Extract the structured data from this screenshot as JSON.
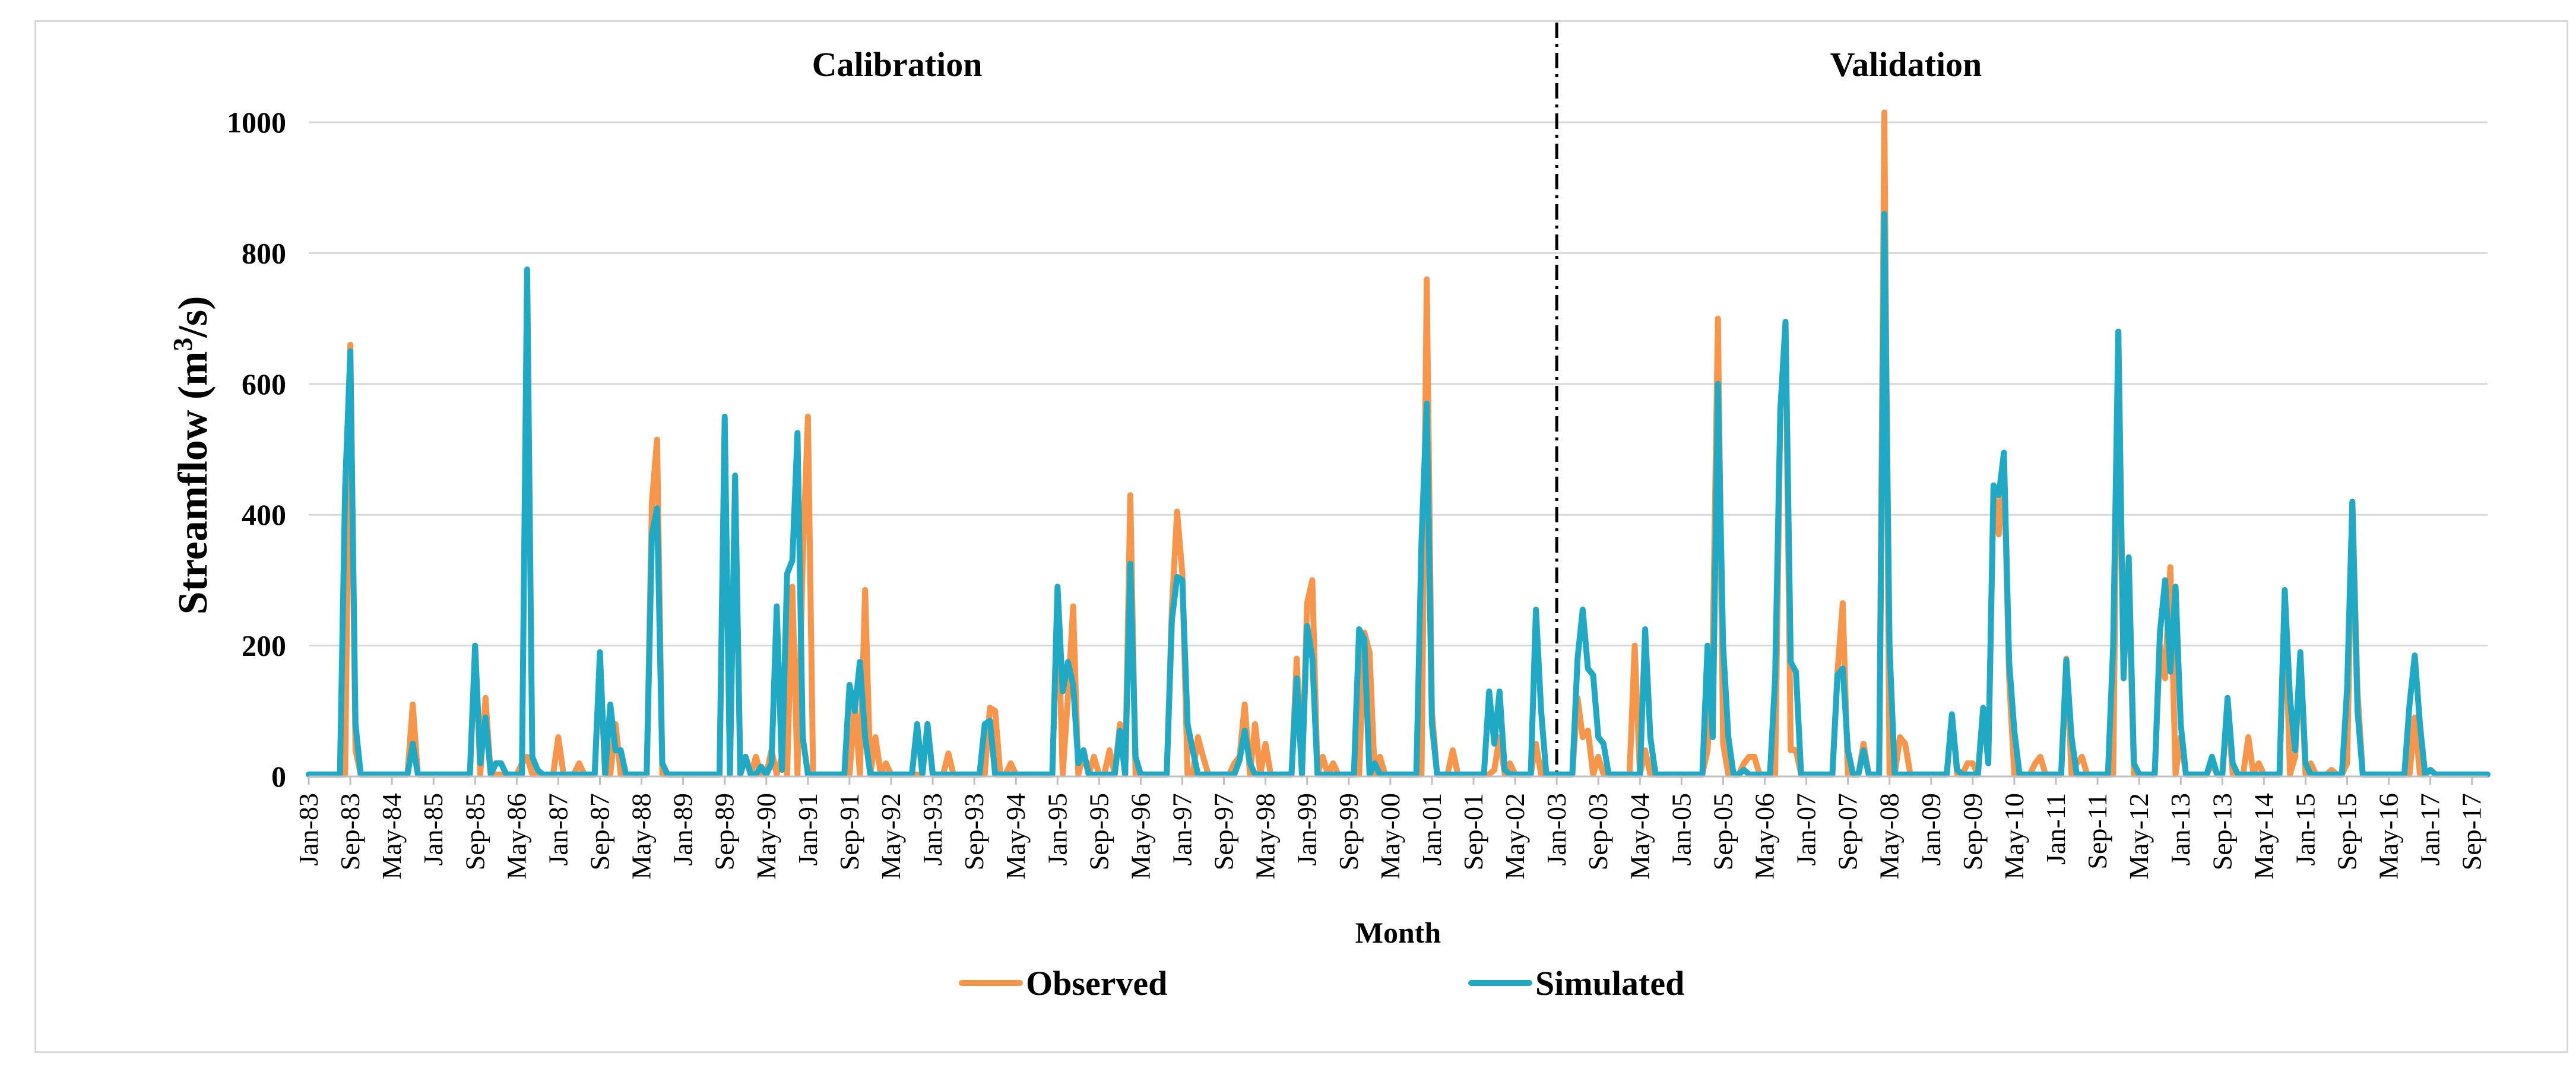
{
  "chart_data": {
    "type": "line",
    "title": "",
    "xlabel": "Month",
    "ylabel_main": "Streamflow (m",
    "ylabel_sup": "3",
    "ylabel_tail": "/s)",
    "ylim": [
      0,
      1100
    ],
    "yticks": [
      0,
      200,
      400,
      600,
      800,
      1000
    ],
    "grid": true,
    "x_start": "Jan-1983",
    "x_end": "Dec-2017",
    "month_count": 420,
    "x_tick_labels": [
      "Jan-83",
      "Sep-83",
      "May-84",
      "Jan-85",
      "Sep-85",
      "May-86",
      "Jan-87",
      "Sep-87",
      "May-88",
      "Jan-89",
      "Sep-89",
      "May-90",
      "Jan-91",
      "Sep-91",
      "May-92",
      "Jan-93",
      "Sep-93",
      "May-94",
      "Jan-95",
      "Sep-95",
      "May-96",
      "Jan-97",
      "Sep-97",
      "May-98",
      "Jan-99",
      "Sep-99",
      "May-00",
      "Jan-01",
      "Sep-01",
      "May-02",
      "Jan-03",
      "Sep-03",
      "May-04",
      "Jan-05",
      "Sep-05",
      "May-06",
      "Jan-07",
      "Sep-07",
      "May-08",
      "Jan-09",
      "Sep-09",
      "May-10",
      "Jan-11",
      "Sep-11",
      "May-12",
      "Jan-13",
      "Sep-13",
      "May-14",
      "Jan-15",
      "Sep-15",
      "May-16",
      "Jan-17",
      "Sep-17"
    ],
    "divider_month_index": 240,
    "period_labels": [
      {
        "text": "Calibration",
        "start": 0,
        "end": 240
      },
      {
        "text": "Validation",
        "start": 240,
        "end": 420
      }
    ],
    "legend_position": "bottom-center",
    "series": [
      {
        "name": "Observed",
        "color": "#f7964a",
        "peaks": [
          {
            "m": 8,
            "v": 660
          },
          {
            "m": 9,
            "v": 40
          },
          {
            "m": 20,
            "v": 110
          },
          {
            "m": 32,
            "v": 200
          },
          {
            "m": 34,
            "v": 120
          },
          {
            "m": 41,
            "v": 20
          },
          {
            "m": 42,
            "v": 20
          },
          {
            "m": 42.5,
            "v": 30
          },
          {
            "m": 48,
            "v": 60
          },
          {
            "m": 52,
            "v": 20
          },
          {
            "m": 56,
            "v": 180
          },
          {
            "m": 59,
            "v": 80
          },
          {
            "m": 66,
            "v": 420
          },
          {
            "m": 67,
            "v": 515
          },
          {
            "m": 80,
            "v": 540
          },
          {
            "m": 82,
            "v": 450
          },
          {
            "m": 84,
            "v": 30
          },
          {
            "m": 86,
            "v": 30
          },
          {
            "m": 89,
            "v": 40
          },
          {
            "m": 91,
            "v": 30
          },
          {
            "m": 93,
            "v": 290
          },
          {
            "m": 95,
            "v": 330
          },
          {
            "m": 96,
            "v": 550
          },
          {
            "m": 105,
            "v": 110
          },
          {
            "m": 107,
            "v": 285
          },
          {
            "m": 109,
            "v": 60
          },
          {
            "m": 111,
            "v": 20
          },
          {
            "m": 119,
            "v": 80
          },
          {
            "m": 123,
            "v": 35
          },
          {
            "m": 131,
            "v": 105
          },
          {
            "m": 132,
            "v": 100
          },
          {
            "m": 135,
            "v": 20
          },
          {
            "m": 144,
            "v": 280
          },
          {
            "m": 146,
            "v": 120
          },
          {
            "m": 147,
            "v": 260
          },
          {
            "m": 149,
            "v": 35
          },
          {
            "m": 151,
            "v": 30
          },
          {
            "m": 154,
            "v": 40
          },
          {
            "m": 156,
            "v": 80
          },
          {
            "m": 158,
            "v": 430
          },
          {
            "m": 166,
            "v": 260
          },
          {
            "m": 167,
            "v": 405
          },
          {
            "m": 168,
            "v": 310
          },
          {
            "m": 171,
            "v": 60
          },
          {
            "m": 172,
            "v": 30
          },
          {
            "m": 178,
            "v": 20
          },
          {
            "m": 179,
            "v": 30
          },
          {
            "m": 180,
            "v": 110
          },
          {
            "m": 182,
            "v": 80
          },
          {
            "m": 184,
            "v": 50
          },
          {
            "m": 190,
            "v": 180
          },
          {
            "m": 192,
            "v": 265
          },
          {
            "m": 193,
            "v": 300
          },
          {
            "m": 195,
            "v": 30
          },
          {
            "m": 197,
            "v": 20
          },
          {
            "m": 203,
            "v": 220
          },
          {
            "m": 204,
            "v": 190
          },
          {
            "m": 206,
            "v": 30
          },
          {
            "m": 215,
            "v": 760
          },
          {
            "m": 216,
            "v": 100
          },
          {
            "m": 220,
            "v": 40
          },
          {
            "m": 228,
            "v": 10
          },
          {
            "m": 229,
            "v": 60
          },
          {
            "m": 231,
            "v": 20
          },
          {
            "m": 236,
            "v": 50
          },
          {
            "m": 244,
            "v": 120
          },
          {
            "m": 245,
            "v": 60
          },
          {
            "m": 246,
            "v": 70
          },
          {
            "m": 248,
            "v": 30
          },
          {
            "m": 255,
            "v": 200
          },
          {
            "m": 257,
            "v": 40
          },
          {
            "m": 269,
            "v": 40
          },
          {
            "m": 270,
            "v": 190
          },
          {
            "m": 271,
            "v": 700
          },
          {
            "m": 272,
            "v": 50
          },
          {
            "m": 276,
            "v": 20
          },
          {
            "m": 277,
            "v": 30
          },
          {
            "m": 278,
            "v": 30
          },
          {
            "m": 283,
            "v": 560
          },
          {
            "m": 284,
            "v": 690
          },
          {
            "m": 285,
            "v": 40
          },
          {
            "m": 286,
            "v": 40
          },
          {
            "m": 294,
            "v": 160
          },
          {
            "m": 295,
            "v": 265
          },
          {
            "m": 299,
            "v": 50
          },
          {
            "m": 303,
            "v": 1015
          },
          {
            "m": 306,
            "v": 60
          },
          {
            "m": 307,
            "v": 50
          },
          {
            "m": 316,
            "v": 95
          },
          {
            "m": 319,
            "v": 20
          },
          {
            "m": 320,
            "v": 20
          },
          {
            "m": 322,
            "v": 100
          },
          {
            "m": 323,
            "v": 30
          },
          {
            "m": 324,
            "v": 440
          },
          {
            "m": 325,
            "v": 370
          },
          {
            "m": 326,
            "v": 480
          },
          {
            "m": 327,
            "v": 150
          },
          {
            "m": 332,
            "v": 20
          },
          {
            "m": 333,
            "v": 30
          },
          {
            "m": 338,
            "v": 180
          },
          {
            "m": 340,
            "v": 20
          },
          {
            "m": 341,
            "v": 30
          },
          {
            "m": 348,
            "v": 680
          },
          {
            "m": 349,
            "v": 170
          },
          {
            "m": 350,
            "v": 300
          },
          {
            "m": 356,
            "v": 200
          },
          {
            "m": 357,
            "v": 150
          },
          {
            "m": 358,
            "v": 320
          },
          {
            "m": 360,
            "v": 60
          },
          {
            "m": 366,
            "v": 20
          },
          {
            "m": 369,
            "v": 110
          },
          {
            "m": 373,
            "v": 60
          },
          {
            "m": 375,
            "v": 20
          },
          {
            "m": 380,
            "v": 280
          },
          {
            "m": 382,
            "v": 30
          },
          {
            "m": 383,
            "v": 180
          },
          {
            "m": 385,
            "v": 20
          },
          {
            "m": 389,
            "v": 10
          },
          {
            "m": 392,
            "v": 20
          },
          {
            "m": 393,
            "v": 420
          },
          {
            "m": 394,
            "v": 130
          },
          {
            "m": 405,
            "v": 90
          },
          {
            "m": 408,
            "v": 10
          }
        ]
      },
      {
        "name": "Simulated",
        "color": "#1fa9c4",
        "peaks": [
          {
            "m": 7,
            "v": 440
          },
          {
            "m": 8,
            "v": 650
          },
          {
            "m": 9,
            "v": 80
          },
          {
            "m": 20,
            "v": 50
          },
          {
            "m": 32,
            "v": 200
          },
          {
            "m": 33,
            "v": 20
          },
          {
            "m": 34,
            "v": 90
          },
          {
            "m": 36,
            "v": 20
          },
          {
            "m": 37,
            "v": 20
          },
          {
            "m": 42,
            "v": 775
          },
          {
            "m": 43,
            "v": 30
          },
          {
            "m": 44,
            "v": 10
          },
          {
            "m": 56,
            "v": 190
          },
          {
            "m": 58,
            "v": 110
          },
          {
            "m": 59,
            "v": 40
          },
          {
            "m": 60,
            "v": 40
          },
          {
            "m": 66,
            "v": 370
          },
          {
            "m": 67,
            "v": 410
          },
          {
            "m": 68,
            "v": 20
          },
          {
            "m": 80,
            "v": 550
          },
          {
            "m": 82,
            "v": 460
          },
          {
            "m": 84,
            "v": 30
          },
          {
            "m": 87,
            "v": 15
          },
          {
            "m": 89,
            "v": 20
          },
          {
            "m": 90,
            "v": 260
          },
          {
            "m": 91,
            "v": 10
          },
          {
            "m": 92,
            "v": 310
          },
          {
            "m": 93,
            "v": 330
          },
          {
            "m": 94,
            "v": 525
          },
          {
            "m": 95,
            "v": 60
          },
          {
            "m": 104,
            "v": 140
          },
          {
            "m": 105,
            "v": 100
          },
          {
            "m": 106,
            "v": 175
          },
          {
            "m": 107,
            "v": 60
          },
          {
            "m": 117,
            "v": 80
          },
          {
            "m": 119,
            "v": 80
          },
          {
            "m": 130,
            "v": 80
          },
          {
            "m": 131,
            "v": 85
          },
          {
            "m": 144,
            "v": 290
          },
          {
            "m": 145,
            "v": 130
          },
          {
            "m": 146,
            "v": 175
          },
          {
            "m": 147,
            "v": 140
          },
          {
            "m": 148,
            "v": 20
          },
          {
            "m": 149,
            "v": 40
          },
          {
            "m": 156,
            "v": 70
          },
          {
            "m": 158,
            "v": 325
          },
          {
            "m": 159,
            "v": 30
          },
          {
            "m": 166,
            "v": 240
          },
          {
            "m": 167,
            "v": 305
          },
          {
            "m": 168,
            "v": 300
          },
          {
            "m": 169,
            "v": 80
          },
          {
            "m": 170,
            "v": 40
          },
          {
            "m": 179,
            "v": 25
          },
          {
            "m": 180,
            "v": 70
          },
          {
            "m": 181,
            "v": 20
          },
          {
            "m": 190,
            "v": 150
          },
          {
            "m": 192,
            "v": 230
          },
          {
            "m": 193,
            "v": 180
          },
          {
            "m": 202,
            "v": 225
          },
          {
            "m": 203,
            "v": 210
          },
          {
            "m": 205,
            "v": 20
          },
          {
            "m": 214,
            "v": 360
          },
          {
            "m": 215,
            "v": 570
          },
          {
            "m": 216,
            "v": 80
          },
          {
            "m": 227,
            "v": 130
          },
          {
            "m": 228,
            "v": 50
          },
          {
            "m": 229,
            "v": 130
          },
          {
            "m": 230,
            "v": 10
          },
          {
            "m": 236,
            "v": 255
          },
          {
            "m": 237,
            "v": 100
          },
          {
            "m": 244,
            "v": 180
          },
          {
            "m": 245,
            "v": 255
          },
          {
            "m": 246,
            "v": 165
          },
          {
            "m": 247,
            "v": 155
          },
          {
            "m": 248,
            "v": 60
          },
          {
            "m": 249,
            "v": 50
          },
          {
            "m": 257,
            "v": 225
          },
          {
            "m": 258,
            "v": 60
          },
          {
            "m": 269,
            "v": 200
          },
          {
            "m": 270,
            "v": 60
          },
          {
            "m": 271,
            "v": 600
          },
          {
            "m": 272,
            "v": 200
          },
          {
            "m": 273,
            "v": 60
          },
          {
            "m": 276,
            "v": 10
          },
          {
            "m": 282,
            "v": 150
          },
          {
            "m": 283,
            "v": 560
          },
          {
            "m": 284,
            "v": 695
          },
          {
            "m": 285,
            "v": 175
          },
          {
            "m": 286,
            "v": 160
          },
          {
            "m": 294,
            "v": 155
          },
          {
            "m": 295,
            "v": 165
          },
          {
            "m": 296,
            "v": 40
          },
          {
            "m": 299,
            "v": 40
          },
          {
            "m": 303,
            "v": 860
          },
          {
            "m": 304,
            "v": 200
          },
          {
            "m": 316,
            "v": 95
          },
          {
            "m": 317,
            "v": 10
          },
          {
            "m": 322,
            "v": 105
          },
          {
            "m": 323,
            "v": 20
          },
          {
            "m": 324,
            "v": 445
          },
          {
            "m": 325,
            "v": 430
          },
          {
            "m": 326,
            "v": 495
          },
          {
            "m": 327,
            "v": 175
          },
          {
            "m": 328,
            "v": 70
          },
          {
            "m": 338,
            "v": 178
          },
          {
            "m": 339,
            "v": 60
          },
          {
            "m": 347,
            "v": 200
          },
          {
            "m": 348,
            "v": 680
          },
          {
            "m": 349,
            "v": 150
          },
          {
            "m": 350,
            "v": 335
          },
          {
            "m": 351,
            "v": 20
          },
          {
            "m": 356,
            "v": 220
          },
          {
            "m": 357,
            "v": 300
          },
          {
            "m": 358,
            "v": 160
          },
          {
            "m": 359,
            "v": 290
          },
          {
            "m": 360,
            "v": 80
          },
          {
            "m": 366,
            "v": 30
          },
          {
            "m": 369,
            "v": 120
          },
          {
            "m": 370,
            "v": 20
          },
          {
            "m": 380,
            "v": 285
          },
          {
            "m": 381,
            "v": 120
          },
          {
            "m": 382,
            "v": 40
          },
          {
            "m": 383,
            "v": 190
          },
          {
            "m": 384,
            "v": 20
          },
          {
            "m": 392,
            "v": 135
          },
          {
            "m": 393,
            "v": 420
          },
          {
            "m": 394,
            "v": 100
          },
          {
            "m": 404,
            "v": 110
          },
          {
            "m": 405,
            "v": 185
          },
          {
            "m": 406,
            "v": 80
          },
          {
            "m": 408,
            "v": 10
          }
        ]
      }
    ]
  }
}
